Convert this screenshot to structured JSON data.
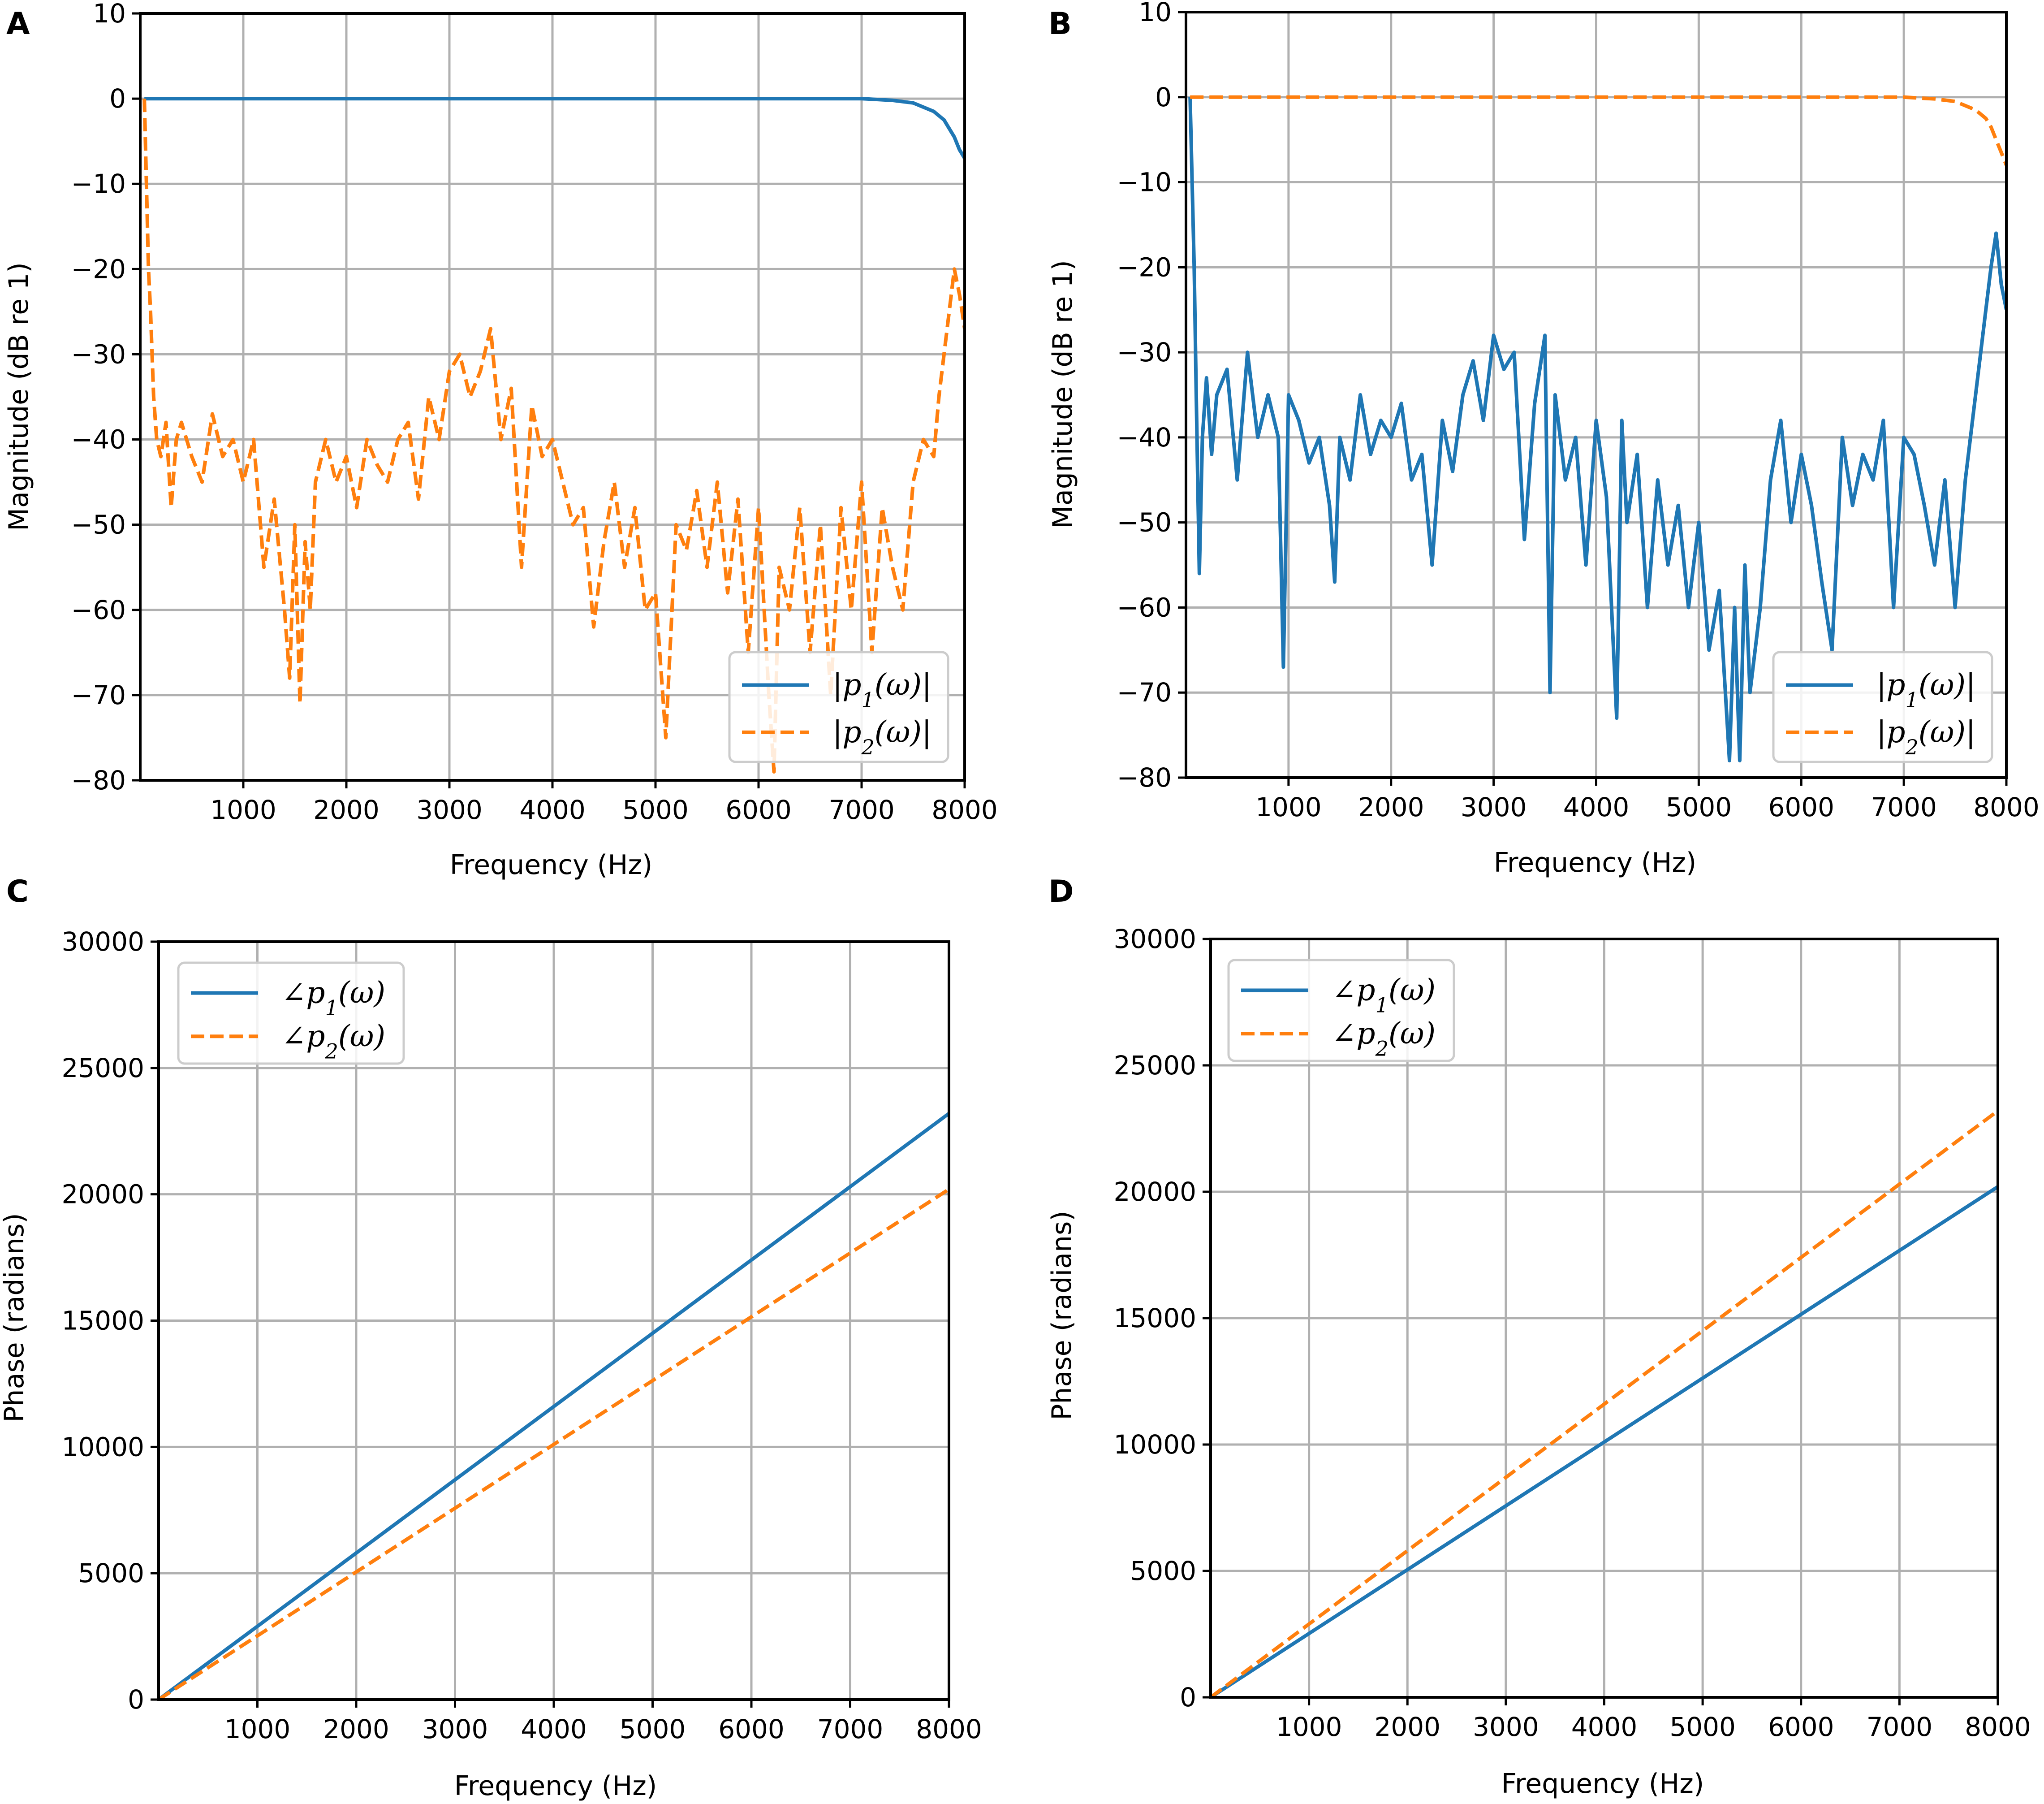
{
  "colors": {
    "p1": "#1f77b4",
    "p2": "#ff7f0e",
    "grid": "#b0b0b0",
    "legend_border": "#cccccc"
  },
  "chart_data": [
    {
      "panel": "A",
      "type": "line",
      "xlabel": "Frequency (Hz)",
      "ylabel": "Magnitude (dB re 1)",
      "xlim": [
        0,
        8000
      ],
      "ylim": [
        -80,
        10
      ],
      "xticks": [
        1000,
        2000,
        3000,
        4000,
        5000,
        6000,
        7000,
        8000
      ],
      "yticks": [
        10,
        0,
        -10,
        -20,
        -30,
        -40,
        -50,
        -60,
        -70,
        -80
      ],
      "grid": true,
      "legend_position": "lower-right",
      "series": [
        {
          "key": "p1",
          "name": "|p1(ω)|",
          "style": "solid",
          "x": [
            40,
            100,
            200,
            500,
            1000,
            2000,
            3000,
            4000,
            5000,
            6000,
            7000,
            7300,
            7500,
            7700,
            7800,
            7850,
            7900,
            7950,
            8000
          ],
          "y": [
            0,
            0,
            0,
            0,
            0,
            0,
            0,
            0,
            0,
            0,
            0,
            -0.2,
            -0.5,
            -1.5,
            -2.5,
            -3.5,
            -4.5,
            -6,
            -7
          ]
        },
        {
          "key": "p2",
          "name": "|p2(ω)|",
          "style": "dashed",
          "x": [
            40,
            60,
            80,
            100,
            130,
            160,
            200,
            250,
            300,
            350,
            400,
            500,
            600,
            700,
            800,
            900,
            1000,
            1100,
            1200,
            1300,
            1400,
            1450,
            1500,
            1550,
            1600,
            1650,
            1700,
            1800,
            1900,
            2000,
            2100,
            2200,
            2300,
            2400,
            2500,
            2600,
            2700,
            2800,
            2900,
            3000,
            3100,
            3200,
            3300,
            3400,
            3500,
            3600,
            3700,
            3800,
            3900,
            4000,
            4100,
            4200,
            4300,
            4400,
            4500,
            4600,
            4700,
            4800,
            4900,
            5000,
            5100,
            5200,
            5300,
            5400,
            5500,
            5600,
            5700,
            5800,
            5900,
            6000,
            6100,
            6150,
            6200,
            6300,
            6400,
            6500,
            6600,
            6700,
            6800,
            6900,
            7000,
            7100,
            7200,
            7300,
            7400,
            7500,
            7600,
            7700,
            7750,
            7800,
            7850,
            7900,
            7950,
            8000
          ],
          "y": [
            0,
            -10,
            -20,
            -25,
            -35,
            -40,
            -42,
            -38,
            -48,
            -40,
            -38,
            -42,
            -45,
            -37,
            -42,
            -40,
            -45,
            -40,
            -55,
            -47,
            -60,
            -68,
            -50,
            -71,
            -52,
            -60,
            -45,
            -40,
            -45,
            -42,
            -48,
            -40,
            -43,
            -45,
            -40,
            -38,
            -47,
            -35,
            -40,
            -32,
            -30,
            -35,
            -32,
            -27,
            -40,
            -34,
            -55,
            -36,
            -42,
            -40,
            -45,
            -50,
            -48,
            -62,
            -52,
            -45,
            -55,
            -48,
            -60,
            -58,
            -75,
            -50,
            -53,
            -46,
            -55,
            -45,
            -58,
            -47,
            -65,
            -48,
            -70,
            -79,
            -55,
            -60,
            -48,
            -65,
            -50,
            -70,
            -48,
            -60,
            -45,
            -65,
            -48,
            -55,
            -60,
            -45,
            -40,
            -42,
            -35,
            -30,
            -25,
            -20,
            -23,
            -27
          ]
        }
      ]
    },
    {
      "panel": "B",
      "type": "line",
      "xlabel": "Frequency (Hz)",
      "ylabel": "Magnitude (dB re 1)",
      "xlim": [
        0,
        8000
      ],
      "ylim": [
        -80,
        10
      ],
      "xticks": [
        1000,
        2000,
        3000,
        4000,
        5000,
        6000,
        7000,
        8000
      ],
      "yticks": [
        10,
        0,
        -10,
        -20,
        -30,
        -40,
        -50,
        -60,
        -70,
        -80
      ],
      "grid": true,
      "legend_position": "lower-right",
      "series": [
        {
          "key": "p1",
          "name": "|p1(ω)|",
          "style": "solid",
          "x": [
            40,
            60,
            80,
            100,
            130,
            160,
            200,
            250,
            300,
            400,
            500,
            600,
            700,
            800,
            900,
            950,
            1000,
            1100,
            1200,
            1300,
            1400,
            1450,
            1500,
            1600,
            1700,
            1800,
            1900,
            2000,
            2100,
            2200,
            2300,
            2400,
            2500,
            2600,
            2700,
            2800,
            2900,
            3000,
            3100,
            3200,
            3300,
            3400,
            3500,
            3550,
            3600,
            3700,
            3800,
            3900,
            4000,
            4100,
            4200,
            4250,
            4300,
            4400,
            4500,
            4600,
            4700,
            4800,
            4900,
            5000,
            5100,
            5200,
            5300,
            5350,
            5400,
            5450,
            5500,
            5600,
            5700,
            5800,
            5900,
            6000,
            6100,
            6200,
            6300,
            6400,
            6500,
            6600,
            6700,
            6800,
            6900,
            7000,
            7100,
            7200,
            7300,
            7400,
            7500,
            7600,
            7700,
            7750,
            7800,
            7850,
            7900,
            7950,
            8000
          ],
          "y": [
            0,
            -10,
            -20,
            -35,
            -56,
            -40,
            -33,
            -42,
            -35,
            -32,
            -45,
            -30,
            -40,
            -35,
            -40,
            -67,
            -35,
            -38,
            -43,
            -40,
            -48,
            -57,
            -40,
            -45,
            -35,
            -42,
            -38,
            -40,
            -36,
            -45,
            -42,
            -55,
            -38,
            -44,
            -35,
            -31,
            -38,
            -28,
            -32,
            -30,
            -52,
            -36,
            -28,
            -70,
            -35,
            -45,
            -40,
            -55,
            -38,
            -47,
            -73,
            -38,
            -50,
            -42,
            -60,
            -45,
            -55,
            -48,
            -60,
            -50,
            -65,
            -58,
            -78,
            -60,
            -78,
            -55,
            -70,
            -60,
            -45,
            -38,
            -50,
            -42,
            -48,
            -57,
            -65,
            -40,
            -48,
            -42,
            -45,
            -38,
            -60,
            -40,
            -42,
            -48,
            -55,
            -45,
            -60,
            -45,
            -35,
            -30,
            -25,
            -20,
            -16,
            -22,
            -25
          ]
        },
        {
          "key": "p2",
          "name": "|p2(ω)|",
          "style": "dashed",
          "x": [
            40,
            100,
            200,
            500,
            1000,
            2000,
            3000,
            4000,
            5000,
            6000,
            7000,
            7300,
            7500,
            7700,
            7800,
            7850,
            7900,
            7950,
            8000
          ],
          "y": [
            0,
            0,
            0,
            0,
            0,
            0,
            0,
            0,
            0,
            0,
            0,
            -0.2,
            -0.5,
            -1.5,
            -2.5,
            -3.5,
            -5,
            -6.5,
            -8
          ]
        }
      ]
    },
    {
      "panel": "C",
      "type": "line",
      "xlabel": "Frequency (Hz)",
      "ylabel": "Phase (radians)",
      "xlim": [
        0,
        8000
      ],
      "ylim": [
        0,
        30000
      ],
      "xticks": [
        1000,
        2000,
        3000,
        4000,
        5000,
        6000,
        7000,
        8000
      ],
      "yticks": [
        30000,
        25000,
        20000,
        15000,
        10000,
        5000,
        0
      ],
      "grid": true,
      "legend_position": "upper-left",
      "series": [
        {
          "key": "p1",
          "name": "∠p1(ω)",
          "style": "solid",
          "x": [
            0,
            8000
          ],
          "y": [
            0,
            23200
          ]
        },
        {
          "key": "p2",
          "name": "∠p2(ω)",
          "style": "dashed",
          "x": [
            0,
            8000
          ],
          "y": [
            0,
            20200
          ]
        }
      ]
    },
    {
      "panel": "D",
      "type": "line",
      "xlabel": "Frequency (Hz)",
      "ylabel": "Phase (radians)",
      "xlim": [
        0,
        8000
      ],
      "ylim": [
        0,
        30000
      ],
      "xticks": [
        1000,
        2000,
        3000,
        4000,
        5000,
        6000,
        7000,
        8000
      ],
      "yticks": [
        30000,
        25000,
        20000,
        15000,
        10000,
        5000,
        0
      ],
      "grid": true,
      "legend_position": "upper-left",
      "series": [
        {
          "key": "p1",
          "name": "∠p1(ω)",
          "style": "solid",
          "x": [
            0,
            8000
          ],
          "y": [
            0,
            20200
          ]
        },
        {
          "key": "p2",
          "name": "∠p2(ω)",
          "style": "dashed",
          "x": [
            0,
            8000
          ],
          "y": [
            0,
            23200
          ]
        }
      ]
    }
  ]
}
